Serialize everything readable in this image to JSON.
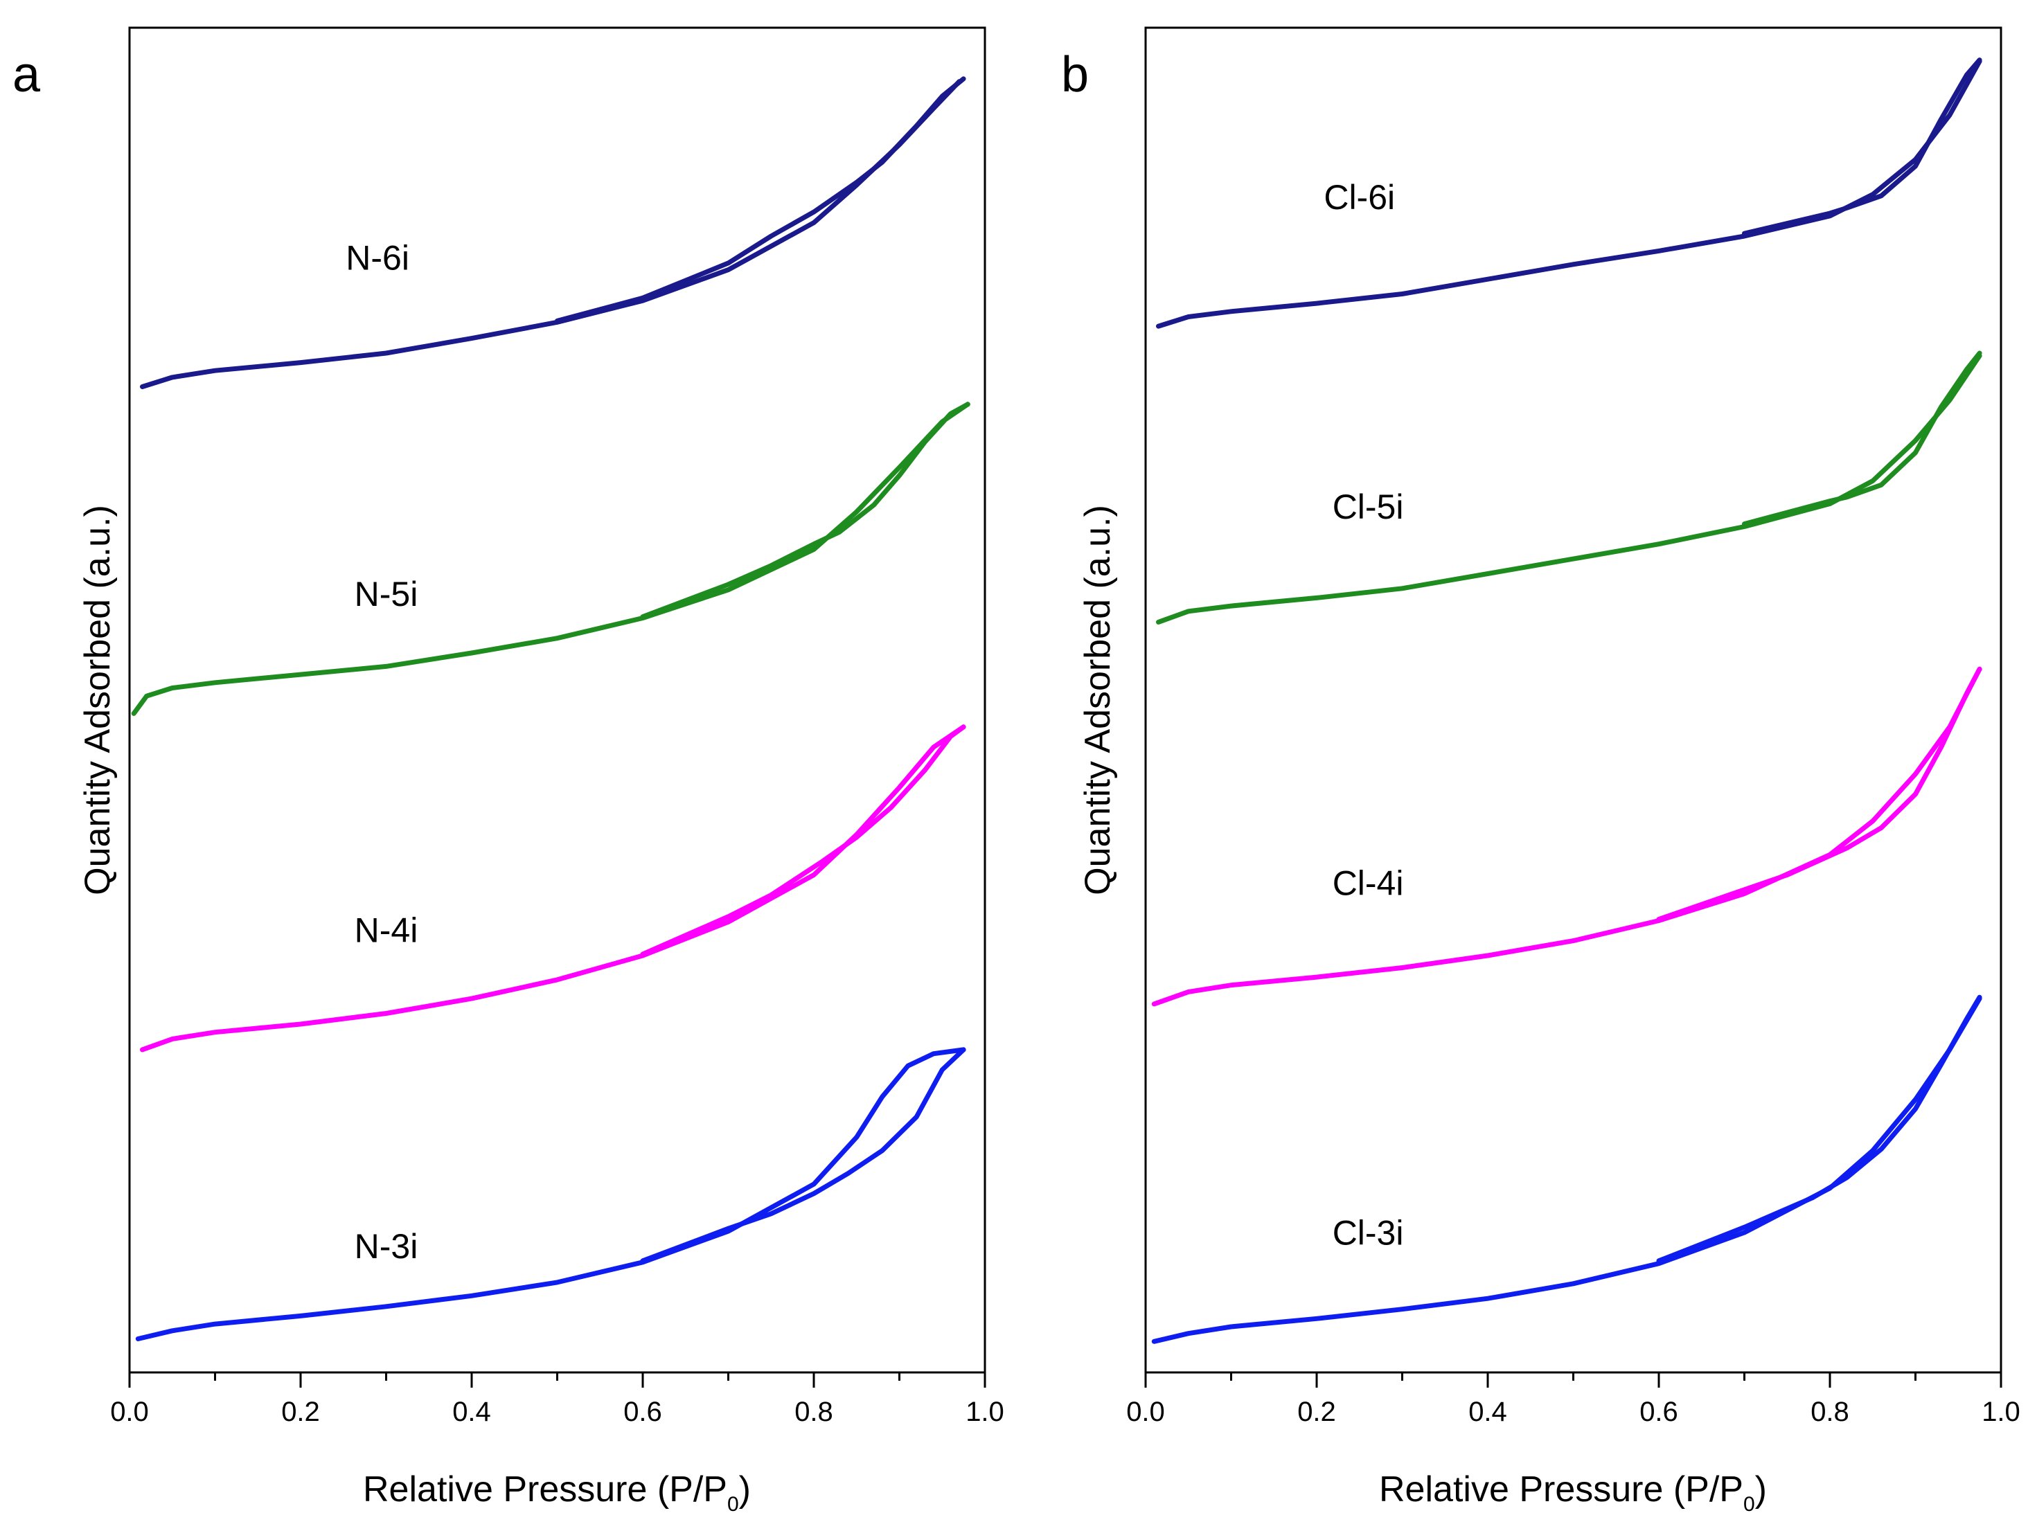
{
  "chart_data": [
    {
      "type": "line",
      "panel": "a",
      "xlabel": "Relative Pressure (P/P",
      "xlabel_sub": "0",
      "xlabel_end": ")",
      "ylabel": "Quantity Adsorbed (a.u.)",
      "xlim": [
        0.0,
        1.0
      ],
      "ylim": [
        0,
        100
      ],
      "xticks": [
        "0.0",
        "0.2",
        "0.4",
        "0.6",
        "0.8",
        "1.0"
      ],
      "series": [
        {
          "name": "N-6i",
          "color": "#1a1a8c",
          "label_at": [
            0.29,
            82
          ],
          "adsorption": [
            [
              0.015,
              73.3
            ],
            [
              0.05,
              74.0
            ],
            [
              0.1,
              74.5
            ],
            [
              0.2,
              75.1
            ],
            [
              0.3,
              75.8
            ],
            [
              0.4,
              76.9
            ],
            [
              0.5,
              78.1
            ],
            [
              0.6,
              79.7
            ],
            [
              0.7,
              82.0
            ],
            [
              0.8,
              85.5
            ],
            [
              0.85,
              88.3
            ],
            [
              0.9,
              91.3
            ],
            [
              0.94,
              94.0
            ],
            [
              0.97,
              96.0
            ]
          ],
          "desorption": [
            [
              0.975,
              96.2
            ],
            [
              0.95,
              94.9
            ],
            [
              0.92,
              92.7
            ],
            [
              0.88,
              90.0
            ],
            [
              0.85,
              88.5
            ],
            [
              0.8,
              86.3
            ],
            [
              0.75,
              84.5
            ],
            [
              0.7,
              82.5
            ],
            [
              0.6,
              79.9
            ],
            [
              0.5,
              78.2
            ]
          ]
        },
        {
          "name": "N-5i",
          "color": "#1f8c1f",
          "label_at": [
            0.3,
            57
          ],
          "adsorption": [
            [
              0.005,
              49.0
            ],
            [
              0.02,
              50.3
            ],
            [
              0.05,
              50.9
            ],
            [
              0.1,
              51.3
            ],
            [
              0.2,
              51.9
            ],
            [
              0.3,
              52.5
            ],
            [
              0.4,
              53.5
            ],
            [
              0.5,
              54.6
            ],
            [
              0.6,
              56.1
            ],
            [
              0.7,
              58.2
            ],
            [
              0.8,
              61.2
            ],
            [
              0.85,
              64.0
            ],
            [
              0.9,
              67.3
            ],
            [
              0.95,
              70.7
            ],
            [
              0.98,
              72.0
            ]
          ],
          "desorption": [
            [
              0.98,
              72.0
            ],
            [
              0.96,
              71.3
            ],
            [
              0.93,
              69.2
            ],
            [
              0.9,
              66.7
            ],
            [
              0.87,
              64.5
            ],
            [
              0.83,
              62.5
            ],
            [
              0.8,
              61.6
            ],
            [
              0.75,
              60.0
            ],
            [
              0.7,
              58.6
            ],
            [
              0.6,
              56.2
            ]
          ]
        },
        {
          "name": "N-4i",
          "color": "#ff00ff",
          "label_at": [
            0.3,
            32
          ],
          "adsorption": [
            [
              0.015,
              24.0
            ],
            [
              0.05,
              24.8
            ],
            [
              0.1,
              25.3
            ],
            [
              0.2,
              25.9
            ],
            [
              0.3,
              26.7
            ],
            [
              0.4,
              27.8
            ],
            [
              0.5,
              29.2
            ],
            [
              0.6,
              31.0
            ],
            [
              0.7,
              33.5
            ],
            [
              0.8,
              37.0
            ],
            [
              0.85,
              40.0
            ],
            [
              0.9,
              43.5
            ],
            [
              0.94,
              46.5
            ],
            [
              0.975,
              48.0
            ]
          ],
          "desorption": [
            [
              0.975,
              48.0
            ],
            [
              0.96,
              47.3
            ],
            [
              0.93,
              44.8
            ],
            [
              0.89,
              42.0
            ],
            [
              0.85,
              39.8
            ],
            [
              0.81,
              38.0
            ],
            [
              0.75,
              35.5
            ],
            [
              0.7,
              33.9
            ],
            [
              0.6,
              31.1
            ]
          ]
        },
        {
          "name": "N-3i",
          "color": "#0f1ef0",
          "label_at": [
            0.3,
            8.5
          ],
          "adsorption": [
            [
              0.01,
              2.5
            ],
            [
              0.05,
              3.1
            ],
            [
              0.1,
              3.6
            ],
            [
              0.2,
              4.2
            ],
            [
              0.3,
              4.9
            ],
            [
              0.4,
              5.7
            ],
            [
              0.5,
              6.7
            ],
            [
              0.6,
              8.2
            ],
            [
              0.7,
              10.5
            ],
            [
              0.8,
              14.0
            ],
            [
              0.85,
              17.5
            ],
            [
              0.88,
              20.5
            ],
            [
              0.91,
              22.8
            ],
            [
              0.94,
              23.7
            ],
            [
              0.975,
              24.0
            ]
          ],
          "desorption": [
            [
              0.975,
              24.0
            ],
            [
              0.95,
              22.5
            ],
            [
              0.92,
              19.0
            ],
            [
              0.88,
              16.5
            ],
            [
              0.84,
              14.8
            ],
            [
              0.8,
              13.3
            ],
            [
              0.75,
              11.8
            ],
            [
              0.7,
              10.7
            ],
            [
              0.6,
              8.3
            ]
          ]
        }
      ]
    },
    {
      "type": "line",
      "panel": "b",
      "xlabel": "Relative Pressure (P/P",
      "xlabel_sub": "0",
      "xlabel_end": ")",
      "ylabel": "Quantity Adsorbed (a.u.)",
      "xlim": [
        0.0,
        1.0
      ],
      "ylim": [
        0,
        100
      ],
      "xticks": [
        "0.0",
        "0.2",
        "0.4",
        "0.6",
        "0.8",
        "1.0"
      ],
      "series": [
        {
          "name": "Cl-6i",
          "color": "#1a1a8c",
          "label_at": [
            0.25,
            86.5
          ],
          "adsorption": [
            [
              0.015,
              77.8
            ],
            [
              0.05,
              78.5
            ],
            [
              0.1,
              78.9
            ],
            [
              0.2,
              79.5
            ],
            [
              0.3,
              80.2
            ],
            [
              0.4,
              81.3
            ],
            [
              0.5,
              82.4
            ],
            [
              0.6,
              83.4
            ],
            [
              0.7,
              84.5
            ],
            [
              0.8,
              86.0
            ],
            [
              0.85,
              87.6
            ],
            [
              0.9,
              90.2
            ],
            [
              0.94,
              93.5
            ],
            [
              0.975,
              97.5
            ]
          ],
          "desorption": [
            [
              0.975,
              97.6
            ],
            [
              0.96,
              96.5
            ],
            [
              0.93,
              93.2
            ],
            [
              0.9,
              89.7
            ],
            [
              0.86,
              87.5
            ],
            [
              0.82,
              86.6
            ],
            [
              0.8,
              86.2
            ],
            [
              0.7,
              84.7
            ]
          ]
        },
        {
          "name": "Cl-5i",
          "color": "#1f8c1f",
          "label_at": [
            0.26,
            63.5
          ],
          "adsorption": [
            [
              0.015,
              55.8
            ],
            [
              0.05,
              56.6
            ],
            [
              0.1,
              57.0
            ],
            [
              0.2,
              57.6
            ],
            [
              0.3,
              58.3
            ],
            [
              0.4,
              59.4
            ],
            [
              0.5,
              60.5
            ],
            [
              0.6,
              61.6
            ],
            [
              0.7,
              62.9
            ],
            [
              0.8,
              64.6
            ],
            [
              0.85,
              66.3
            ],
            [
              0.9,
              69.3
            ],
            [
              0.94,
              72.3
            ],
            [
              0.975,
              75.6
            ]
          ],
          "desorption": [
            [
              0.975,
              75.8
            ],
            [
              0.96,
              74.6
            ],
            [
              0.93,
              71.8
            ],
            [
              0.9,
              68.4
            ],
            [
              0.86,
              66.0
            ],
            [
              0.82,
              65.1
            ],
            [
              0.8,
              64.8
            ],
            [
              0.7,
              63.1
            ]
          ]
        },
        {
          "name": "Cl-4i",
          "color": "#ff00ff",
          "label_at": [
            0.26,
            35.5
          ],
          "adsorption": [
            [
              0.01,
              27.4
            ],
            [
              0.05,
              28.3
            ],
            [
              0.1,
              28.8
            ],
            [
              0.2,
              29.4
            ],
            [
              0.3,
              30.1
            ],
            [
              0.4,
              31.0
            ],
            [
              0.5,
              32.1
            ],
            [
              0.6,
              33.6
            ],
            [
              0.7,
              35.6
            ],
            [
              0.8,
              38.5
            ],
            [
              0.85,
              41.0
            ],
            [
              0.9,
              44.5
            ],
            [
              0.94,
              48.0
            ],
            [
              0.975,
              52.3
            ]
          ],
          "desorption": [
            [
              0.975,
              52.3
            ],
            [
              0.96,
              50.5
            ],
            [
              0.93,
              46.5
            ],
            [
              0.9,
              43.0
            ],
            [
              0.86,
              40.5
            ],
            [
              0.82,
              39.0
            ],
            [
              0.75,
              37.0
            ],
            [
              0.7,
              35.9
            ],
            [
              0.6,
              33.7
            ]
          ]
        },
        {
          "name": "Cl-3i",
          "color": "#0f1ef0",
          "label_at": [
            0.26,
            9.5
          ],
          "adsorption": [
            [
              0.01,
              2.3
            ],
            [
              0.05,
              2.9
            ],
            [
              0.1,
              3.4
            ],
            [
              0.2,
              4.0
            ],
            [
              0.3,
              4.7
            ],
            [
              0.4,
              5.5
            ],
            [
              0.5,
              6.6
            ],
            [
              0.6,
              8.1
            ],
            [
              0.7,
              10.4
            ],
            [
              0.8,
              13.7
            ],
            [
              0.85,
              16.5
            ],
            [
              0.9,
              20.3
            ],
            [
              0.94,
              24.0
            ],
            [
              0.975,
              27.8
            ]
          ],
          "desorption": [
            [
              0.975,
              27.9
            ],
            [
              0.96,
              26.3
            ],
            [
              0.93,
              22.9
            ],
            [
              0.9,
              19.6
            ],
            [
              0.86,
              16.6
            ],
            [
              0.82,
              14.5
            ],
            [
              0.78,
              13.0
            ],
            [
              0.7,
              10.8
            ],
            [
              0.6,
              8.3
            ]
          ]
        }
      ]
    }
  ]
}
